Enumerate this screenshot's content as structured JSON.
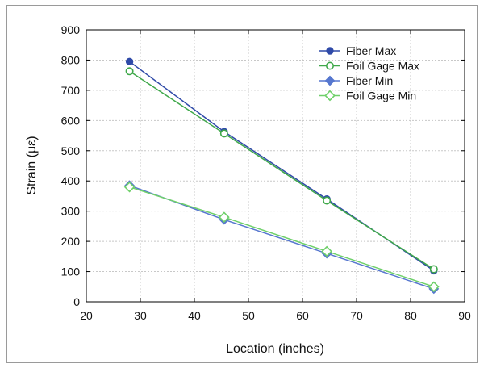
{
  "chart_data": {
    "type": "line",
    "title": "",
    "xlabel": "Location (inches)",
    "ylabel": "Strain (με)",
    "xlim": [
      20,
      90
    ],
    "ylim": [
      0,
      900
    ],
    "xticks": [
      20,
      30,
      40,
      50,
      60,
      70,
      80,
      90
    ],
    "yticks": [
      0,
      100,
      200,
      300,
      400,
      500,
      600,
      700,
      800,
      900
    ],
    "grid": true,
    "legend_position": "top-right",
    "series": [
      {
        "name": "Fiber Max",
        "color": "#2f4aa8",
        "marker": "filled-circle",
        "x": [
          28,
          45.5,
          64.5,
          84.3
        ],
        "y": [
          795,
          563,
          340,
          103
        ]
      },
      {
        "name": "Foil Gage Max",
        "color": "#3fa84a",
        "marker": "open-circle",
        "x": [
          28,
          45.5,
          64.5,
          84.3
        ],
        "y": [
          763,
          557,
          335,
          108
        ]
      },
      {
        "name": "Fiber Min",
        "color": "#5677cf",
        "marker": "filled-diamond",
        "x": [
          28,
          45.5,
          64.5,
          84.3
        ],
        "y": [
          385,
          272,
          160,
          43
        ]
      },
      {
        "name": "Foil Gage Min",
        "color": "#6fd06a",
        "marker": "open-diamond",
        "x": [
          28,
          45.5,
          64.5,
          84.3
        ],
        "y": [
          380,
          280,
          167,
          50
        ]
      }
    ]
  }
}
